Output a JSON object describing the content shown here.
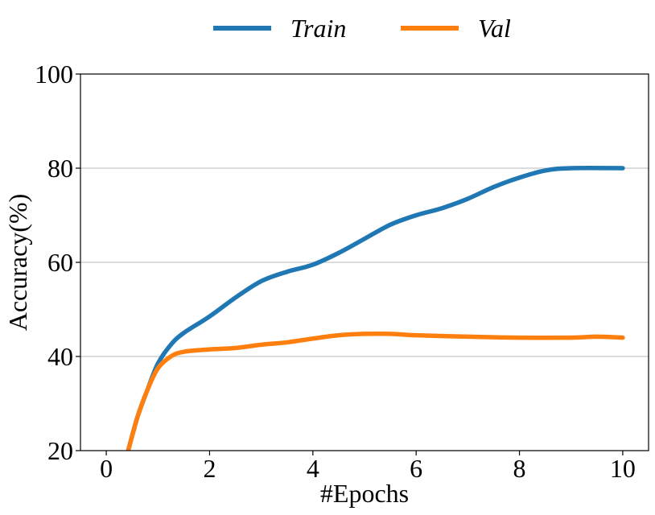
{
  "chart_data": {
    "type": "line",
    "xlabel": "#Epochs",
    "ylabel": "Accuracy(%)",
    "xlim": [
      -0.5,
      10.5
    ],
    "ylim": [
      20,
      100
    ],
    "xticks": [
      "0",
      "2",
      "4",
      "6",
      "8",
      "10"
    ],
    "yticks": [
      "20",
      "40",
      "60",
      "80",
      "100"
    ],
    "grid": "horizontal",
    "legend_position": "top",
    "series": [
      {
        "name": "Train",
        "color": "#1f77b4",
        "points": [
          [
            0.4,
            19
          ],
          [
            0.6,
            27
          ],
          [
            0.8,
            33
          ],
          [
            1.0,
            38.5
          ],
          [
            1.25,
            42.5
          ],
          [
            1.5,
            45
          ],
          [
            2.0,
            48.5
          ],
          [
            2.5,
            52.5
          ],
          [
            3.0,
            56
          ],
          [
            3.5,
            58
          ],
          [
            4.0,
            59.5
          ],
          [
            4.5,
            62
          ],
          [
            5.0,
            65
          ],
          [
            5.5,
            68
          ],
          [
            6.0,
            70
          ],
          [
            6.5,
            71.5
          ],
          [
            7.0,
            73.5
          ],
          [
            7.5,
            76
          ],
          [
            8.0,
            78
          ],
          [
            8.5,
            79.5
          ],
          [
            9.0,
            80
          ],
          [
            10.0,
            80
          ]
        ]
      },
      {
        "name": "Val",
        "color": "#ff7f0e",
        "points": [
          [
            0.4,
            19
          ],
          [
            0.6,
            27
          ],
          [
            0.8,
            33
          ],
          [
            1.0,
            37.5
          ],
          [
            1.25,
            40
          ],
          [
            1.5,
            41
          ],
          [
            2.0,
            41.5
          ],
          [
            2.5,
            41.8
          ],
          [
            3.0,
            42.5
          ],
          [
            3.5,
            43
          ],
          [
            4.0,
            43.8
          ],
          [
            4.5,
            44.5
          ],
          [
            5.0,
            44.8
          ],
          [
            5.5,
            44.8
          ],
          [
            6.0,
            44.5
          ],
          [
            7.0,
            44.2
          ],
          [
            8.0,
            44
          ],
          [
            9.0,
            44
          ],
          [
            9.5,
            44.2
          ],
          [
            10.0,
            44
          ]
        ]
      }
    ]
  }
}
